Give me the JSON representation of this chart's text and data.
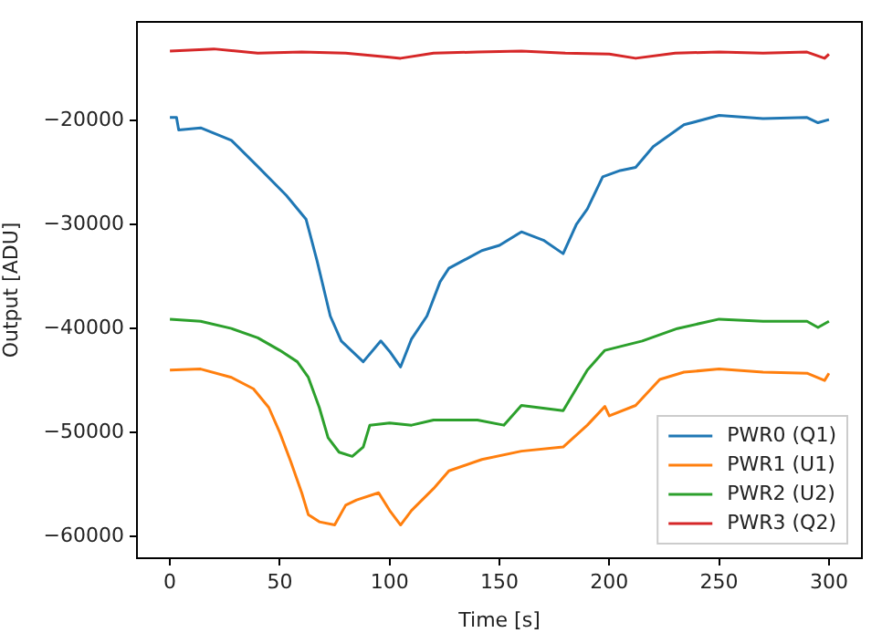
{
  "chart_data": {
    "type": "line",
    "xlabel": "Time [s]",
    "ylabel": "Output [ADU]",
    "xlim": [
      -15,
      315
    ],
    "xticks": [
      0,
      50,
      100,
      150,
      200,
      250,
      300
    ],
    "ylim": [
      -62100,
      -10500
    ],
    "yticks": [
      {
        "value": -60000,
        "label": "−60000"
      },
      {
        "value": -50000,
        "label": "−50000"
      },
      {
        "value": -40000,
        "label": "−40000"
      },
      {
        "value": -30000,
        "label": "−30000"
      },
      {
        "value": -20000,
        "label": "−20000"
      }
    ],
    "grid": false,
    "legend": "bottom right",
    "marker": "none",
    "line_style": "solid",
    "series": [
      {
        "name": "PWR0 (Q1)",
        "color": "#1f77b4",
        "x": [
          0,
          3,
          4,
          14,
          28,
          39,
          53,
          62,
          67,
          73,
          78,
          88,
          96,
          100,
          105,
          110,
          117,
          123,
          127,
          135,
          142,
          150,
          160,
          170,
          179,
          185,
          190,
          197,
          205,
          212,
          220,
          234,
          250,
          270,
          290,
          295,
          300
        ],
        "values": [
          -19700,
          -19700,
          -20900,
          -20700,
          -21900,
          -24200,
          -27200,
          -29500,
          -33500,
          -38800,
          -41200,
          -43200,
          -41200,
          -42200,
          -43700,
          -41000,
          -38800,
          -35500,
          -34200,
          -33300,
          -32500,
          -32000,
          -30700,
          -31500,
          -32800,
          -30000,
          -28500,
          -25400,
          -24800,
          -24500,
          -22500,
          -20400,
          -19500,
          -19800,
          -19700,
          -20200,
          -19900
        ]
      },
      {
        "name": "PWR1 (U1)",
        "color": "#ff7f0e",
        "x": [
          0,
          14,
          28,
          38,
          45,
          50,
          55,
          60,
          63,
          68,
          75,
          80,
          85,
          95,
          100,
          105,
          110,
          120,
          127,
          142,
          160,
          179,
          190,
          198,
          200,
          212,
          223,
          234,
          250,
          270,
          290,
          298,
          300
        ],
        "values": [
          -44000,
          -43900,
          -44700,
          -45800,
          -47600,
          -50000,
          -52800,
          -55800,
          -57900,
          -58600,
          -58900,
          -57000,
          -56500,
          -55800,
          -57500,
          -58900,
          -57500,
          -55400,
          -53700,
          -52600,
          -51800,
          -51400,
          -49300,
          -47500,
          -48400,
          -47400,
          -44900,
          -44200,
          -43900,
          -44200,
          -44300,
          -45000,
          -44300
        ]
      },
      {
        "name": "PWR2 (U2)",
        "color": "#2ca02c",
        "x": [
          0,
          14,
          28,
          40,
          50,
          58,
          63,
          68,
          72,
          77,
          83,
          88,
          91,
          100,
          110,
          120,
          140,
          152,
          160,
          179,
          190,
          198,
          215,
          231,
          250,
          270,
          290,
          295,
          300
        ],
        "values": [
          -39100,
          -39300,
          -40000,
          -40900,
          -42100,
          -43200,
          -44700,
          -47600,
          -50500,
          -51900,
          -52300,
          -51400,
          -49300,
          -49100,
          -49300,
          -48800,
          -48800,
          -49300,
          -47400,
          -47900,
          -44000,
          -42100,
          -41200,
          -40000,
          -39100,
          -39300,
          -39300,
          -39900,
          -39300
        ]
      },
      {
        "name": "PWR3 (Q2)",
        "color": "#d62728",
        "x": [
          0,
          20,
          40,
          60,
          80,
          100,
          105,
          120,
          140,
          160,
          180,
          200,
          212,
          230,
          250,
          270,
          290,
          298,
          300
        ],
        "values": [
          -13300,
          -13100,
          -13500,
          -13400,
          -13500,
          -13900,
          -14000,
          -13500,
          -13400,
          -13300,
          -13500,
          -13600,
          -14000,
          -13500,
          -13400,
          -13500,
          -13400,
          -14000,
          -13600
        ]
      }
    ]
  }
}
